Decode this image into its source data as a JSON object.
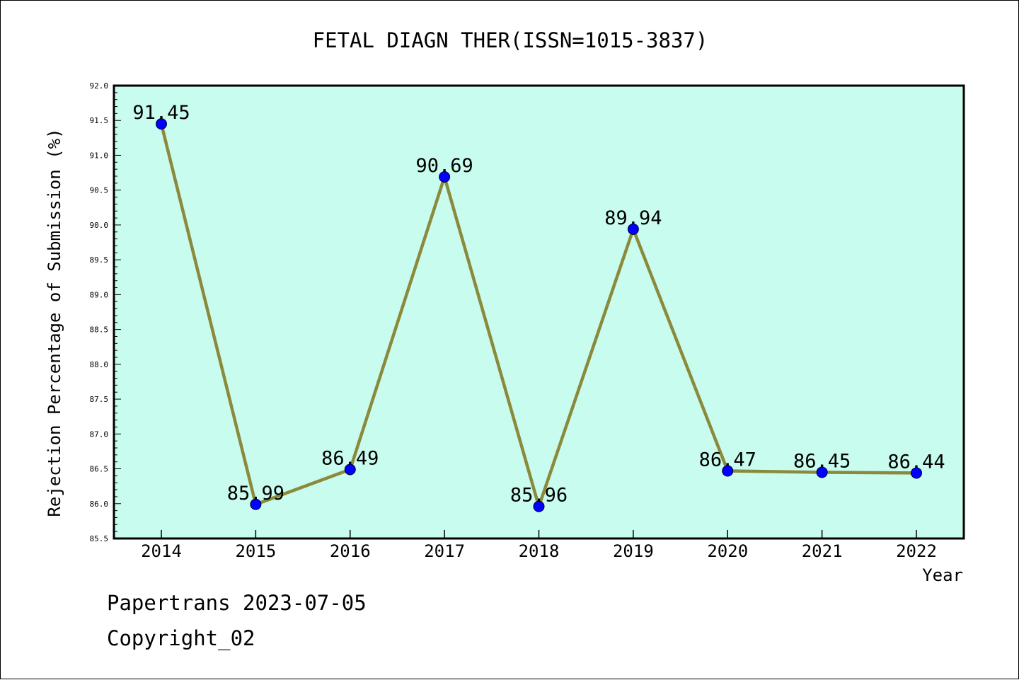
{
  "chart_data": {
    "type": "line",
    "title": "FETAL DIAGN THER(ISSN=1015-3837)",
    "xlabel": "Year",
    "ylabel": "Rejection Percentage of Submission (%)",
    "categories": [
      "2014",
      "2015",
      "2016",
      "2017",
      "2018",
      "2019",
      "2020",
      "2021",
      "2022"
    ],
    "values": [
      91.45,
      85.99,
      86.49,
      90.69,
      85.96,
      89.94,
      86.47,
      86.45,
      86.44
    ],
    "data_labels": [
      "91.45",
      "85.99",
      "86.49",
      "90.69",
      "85.96",
      "89.94",
      "86.47",
      "86.45",
      "86.44"
    ],
    "ylim": [
      85.5,
      92.0
    ],
    "ytick_labels": [
      "85.5",
      "86.0",
      "86.5",
      "87.0",
      "87.5",
      "88.0",
      "88.5",
      "89.0",
      "89.5",
      "90.0",
      "90.5",
      "91.0",
      "91.5",
      "92.0"
    ],
    "grid": false,
    "colors": {
      "plot_background": "#c8fcee",
      "line": "#8b8a3c",
      "marker": "#0000ff"
    }
  },
  "footer": {
    "line1": "Papertrans 2023-07-05",
    "line2": "Copyright_02"
  }
}
